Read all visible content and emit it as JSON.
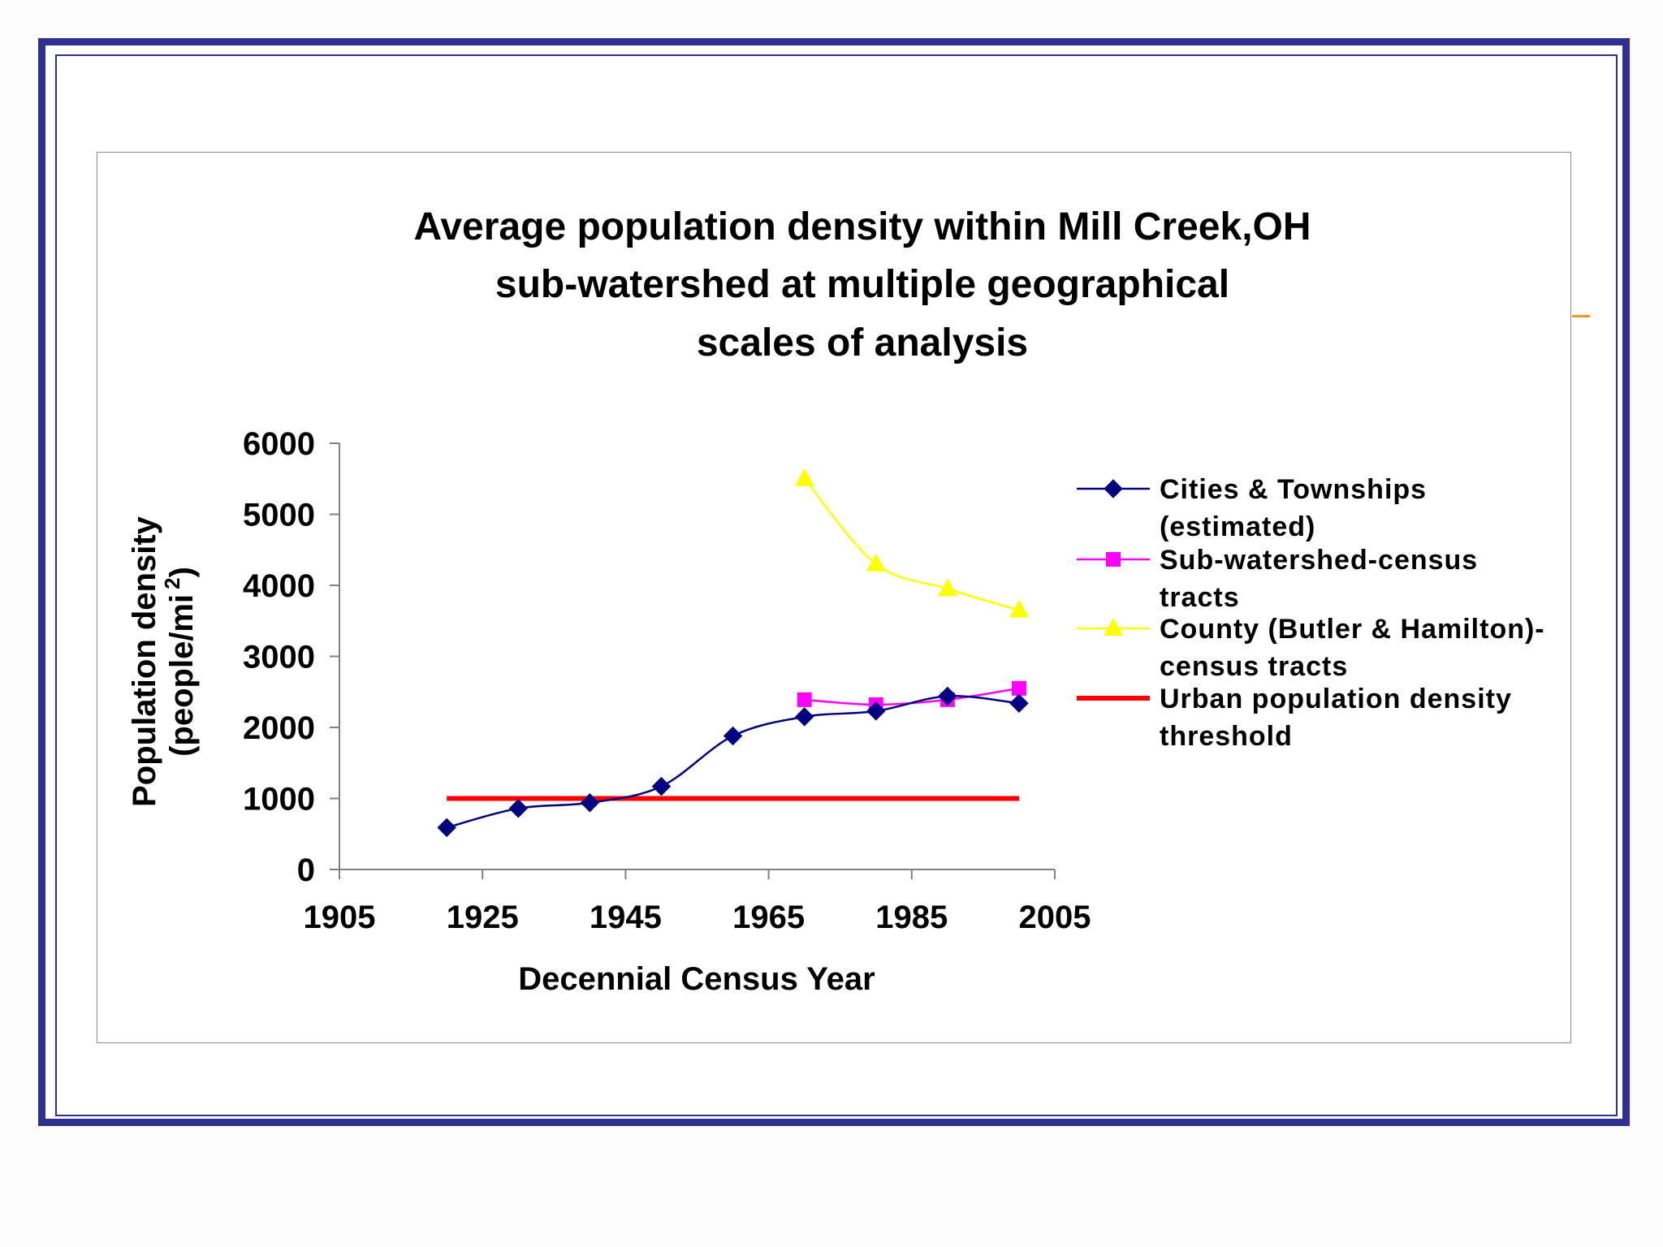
{
  "chart_data": {
    "type": "line",
    "title": [
      "Average population density within Mill Creek,OH",
      "sub-watershed at multiple geographical",
      "scales of analysis"
    ],
    "xlabel": "Decennial Census Year",
    "ylabel": [
      "Population density",
      "(people/mi"
    ],
    "ylabel_superscript": "2",
    "ylabel_close": ")",
    "xlim": [
      1905,
      2005
    ],
    "ylim": [
      0,
      6000
    ],
    "xticks": [
      "1905",
      "1925",
      "1945",
      "1965",
      "1985",
      "2005"
    ],
    "yticks": [
      "0",
      "1000",
      "2000",
      "3000",
      "4000",
      "5000",
      "6000"
    ],
    "legend_position": "right",
    "series": [
      {
        "name": [
          "Cities & Townships",
          "(estimated)"
        ],
        "color": "#000080",
        "marker": "diamond",
        "x": [
          1920,
          1930,
          1940,
          1950,
          1960,
          1970,
          1980,
          1990,
          2000
        ],
        "y": [
          590,
          860,
          940,
          1170,
          1880,
          2150,
          2230,
          2440,
          2340
        ]
      },
      {
        "name": [
          "Sub-watershed-census",
          "tracts"
        ],
        "color": "#ff00ff",
        "marker": "square",
        "x": [
          1970,
          1980,
          1990,
          2000
        ],
        "y": [
          2390,
          2320,
          2390,
          2550
        ]
      },
      {
        "name": [
          "County (Butler & Hamilton)-",
          "census tracts"
        ],
        "color": "#ffff00",
        "marker": "triangle",
        "x": [
          1970,
          1980,
          1990,
          2000
        ],
        "y": [
          5500,
          4300,
          3950,
          3650
        ]
      },
      {
        "name": [
          "Urban population density",
          "threshold"
        ],
        "color": "#ff0000",
        "marker": "none",
        "x": [
          1920,
          2000
        ],
        "y": [
          1000,
          1000
        ]
      }
    ]
  }
}
